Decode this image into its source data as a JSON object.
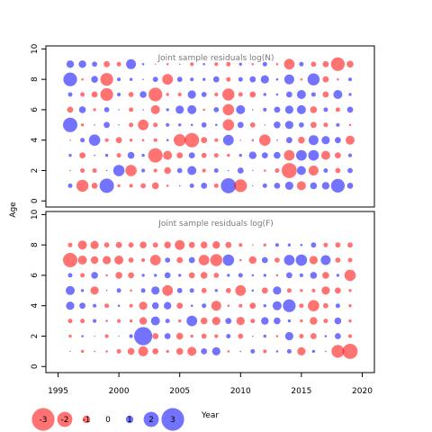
{
  "ylabel": "Age",
  "xlabel": "Year",
  "colors": {
    "positive": "#0000FF",
    "negative": "#FF0000",
    "opacity": 0.55
  },
  "chart_data": [
    {
      "type": "scatter",
      "subtype": "bubble",
      "title": "Joint sample residuals log(N)",
      "xlim": [
        1994,
        2021
      ],
      "ylim": [
        -0.4,
        10.2
      ],
      "x_ticks": [
        1995,
        2000,
        2005,
        2010,
        2015,
        2020
      ],
      "y_ticks": [
        0,
        2,
        4,
        6,
        8,
        10
      ],
      "years": [
        1996,
        1997,
        1998,
        1999,
        2000,
        2001,
        2002,
        2003,
        2004,
        2005,
        2006,
        2007,
        2008,
        2009,
        2010,
        2011,
        2012,
        2013,
        2014,
        2015,
        2016,
        2017,
        2018,
        2019
      ],
      "ages": [
        1,
        2,
        3,
        4,
        5,
        6,
        7,
        8,
        9
      ],
      "residuals": [
        [
          0.6,
          -1.6,
          -0.8,
          1.9,
          -0.4,
          -0.5,
          -0.7,
          -0.9,
          -0.3,
          0.2,
          0.6,
          0.8,
          -0.6,
          2.0,
          -1.7,
          0.1,
          0.6,
          0.8,
          1.1,
          -1.2,
          0.9,
          1.0,
          1.8,
          0.8
        ],
        [
          0.1,
          -0.6,
          -0.6,
          0.2,
          1.5,
          -1.5,
          0.5,
          -0.5,
          -0.9,
          0.7,
          1.2,
          -0.5,
          0.6,
          0.2,
          0.8,
          0.1,
          -0.3,
          -0.6,
          -2.0,
          1.2,
          -1.3,
          0.6,
          -0.7,
          0.7
        ],
        [
          0.4,
          -0.8,
          0.2,
          0.4,
          -0.6,
          0.9,
          0.4,
          -1.9,
          -1.2,
          -0.8,
          0.8,
          -0.7,
          -0.6,
          -0.4,
          0.4,
          1.0,
          0.8,
          0.9,
          -1.4,
          1.4,
          1.4,
          -1.2,
          -0.8,
          0.5
        ],
        [
          -0.2,
          0.6,
          1.5,
          -0.5,
          -0.8,
          -0.4,
          -0.3,
          -0.5,
          0.3,
          -1.6,
          -1.9,
          -0.8,
          -0.5,
          1.4,
          -0.2,
          -0.3,
          -1.5,
          0.2,
          0.8,
          -0.9,
          1.3,
          1.1,
          0.8,
          -1.2
        ],
        [
          1.9,
          -0.4,
          0.2,
          0.8,
          0.2,
          -0.6,
          -1.4,
          -0.6,
          0.5,
          0.4,
          0.3,
          0.7,
          0.3,
          -1.5,
          0.8,
          -0.7,
          -0.2,
          0.9,
          1.1,
          0.7,
          -0.8,
          -0.6,
          0.5,
          -0.3
        ],
        [
          -0.8,
          0.9,
          -0.4,
          0.7,
          0.2,
          -0.6,
          0.2,
          -1.2,
          0.4,
          1.1,
          1.2,
          -0.3,
          0.7,
          -1.5,
          1.2,
          0.2,
          0.5,
          0.8,
          1.1,
          1.2,
          -0.9,
          0.6,
          -0.6,
          0.8
        ],
        [
          0.6,
          -0.6,
          -0.8,
          -1.7,
          0.5,
          -0.7,
          0.9,
          -1.8,
          -0.4,
          -0.5,
          1.1,
          0.7,
          -0.5,
          -1.6,
          -0.6,
          -0.8,
          0.4,
          0.3,
          0.8,
          1.2,
          0.6,
          -0.8,
          1.2,
          0.4
        ],
        [
          1.8,
          -0.3,
          0.9,
          -1.7,
          0.5,
          0.4,
          0.2,
          0.7,
          -1.4,
          0.7,
          0.5,
          0.4,
          0.8,
          -0.6,
          0.6,
          0.8,
          1.1,
          0.3,
          1.3,
          -0.3,
          1.6,
          -0.8,
          -0.3,
          0.5
        ],
        [
          1.0,
          1.0,
          0.7,
          -0.8,
          -0.6,
          1.3,
          0.3,
          -0.2,
          -0.3,
          0.2,
          -0.5,
          0.3,
          -0.5,
          -0.6,
          0.4,
          -0.3,
          0.6,
          -0.3,
          -1.4,
          0.6,
          -0.7,
          -0.8,
          -1.8,
          -0.9
        ]
      ]
    },
    {
      "type": "scatter",
      "subtype": "bubble",
      "title": "Joint sample residuals log(F)",
      "xlim": [
        1994,
        2021
      ],
      "ylim": [
        -0.4,
        10.2
      ],
      "x_ticks": [
        1995,
        2000,
        2005,
        2010,
        2015,
        2020
      ],
      "x_tick_labels": [
        "1995",
        "2000",
        "2005",
        "2010",
        "2015",
        "2020"
      ],
      "y_ticks": [
        0,
        2,
        4,
        6,
        8,
        10
      ],
      "years": [
        1996,
        1997,
        1998,
        1999,
        2000,
        2001,
        2002,
        2003,
        2004,
        2005,
        2006,
        2007,
        2008,
        2009,
        2010,
        2011,
        2012,
        2013,
        2014,
        2015,
        2016,
        2017,
        2018,
        2019
      ],
      "ages": [
        1,
        2,
        3,
        4,
        5,
        6,
        7,
        8
      ],
      "residuals": [
        [
          0.1,
          -0.4,
          0.2,
          -0.3,
          -0.6,
          -0.9,
          -1.3,
          -0.8,
          -0.4,
          -0.9,
          -1.2,
          0.8,
          1.1,
          -0.3,
          0.2,
          0.6,
          -0.5,
          0.3,
          0.6,
          -1.1,
          0.4,
          0.2,
          -1.7,
          -2.0
        ],
        [
          -0.4,
          0.3,
          -0.2,
          -0.5,
          0.1,
          0.5,
          2.4,
          -0.8,
          0.8,
          -0.9,
          -0.4,
          -0.7,
          -0.5,
          0.6,
          -0.7,
          0.2,
          0.4,
          -0.3,
          1.1,
          -0.6,
          -0.8,
          0.3,
          0.8,
          -0.5
        ],
        [
          -0.6,
          -0.6,
          0.5,
          -0.3,
          -0.5,
          -0.4,
          -1.0,
          1.2,
          0.6,
          -0.4,
          1.4,
          -0.9,
          -1.1,
          0.8,
          -1.1,
          -0.6,
          1.0,
          0.9,
          0.4,
          -0.4,
          -1.0,
          -0.6,
          0.9,
          -0.4
        ],
        [
          1.1,
          0.8,
          0.5,
          -0.6,
          0.3,
          -0.5,
          -1.1,
          0.9,
          1.0,
          -0.8,
          0.3,
          0.6,
          -1.3,
          -0.3,
          -0.5,
          -0.8,
          0.4,
          1.2,
          1.7,
          -0.6,
          -1.5,
          -0.7,
          0.6,
          -0.4
        ],
        [
          1.2,
          0.4,
          -1.1,
          0.2,
          0.6,
          -0.3,
          0.6,
          1.1,
          -1.4,
          0.7,
          0.6,
          -0.7,
          0.4,
          -0.7,
          -1.4,
          0.3,
          -0.8,
          1.1,
          -0.6,
          -0.4,
          -0.5,
          -1.1,
          -0.8,
          -0.4
        ],
        [
          0.6,
          -0.6,
          0.9,
          -0.3,
          -0.9,
          -0.8,
          0.4,
          0.4,
          0.8,
          0.4,
          -0.8,
          -0.9,
          -0.7,
          0.4,
          0.6,
          0.3,
          0.4,
          -0.3,
          0.8,
          0.5,
          0.9,
          -0.9,
          0.4,
          -1.5
        ],
        [
          -1.9,
          -1.2,
          -1.0,
          -1.1,
          -1.2,
          -0.7,
          -0.5,
          -1.4,
          0.7,
          -0.8,
          0.8,
          -1.4,
          -1.6,
          1.5,
          -0.3,
          -1.0,
          0.8,
          -0.7,
          1.4,
          1.5,
          -1.1,
          1.3,
          -0.7,
          -0.6
        ],
        [
          -0.6,
          -1.2,
          -1.1,
          -0.7,
          -0.8,
          -0.7,
          -0.9,
          -0.7,
          -0.9,
          -1.3,
          -0.8,
          -0.9,
          -1.0,
          -0.8,
          -0.5,
          -0.2,
          -0.4,
          0.5,
          0.4,
          0.3,
          0.7,
          -0.6,
          -0.7,
          -0.7
        ]
      ]
    }
  ],
  "legend": {
    "items": [
      {
        "label": "-3",
        "value": -3
      },
      {
        "label": "-2",
        "value": -2
      },
      {
        "label": "-1",
        "value": -1
      },
      {
        "label": "0",
        "value": 0
      },
      {
        "label": "1",
        "value": 1
      },
      {
        "label": "2",
        "value": 2
      },
      {
        "label": "3",
        "value": 3
      }
    ]
  }
}
